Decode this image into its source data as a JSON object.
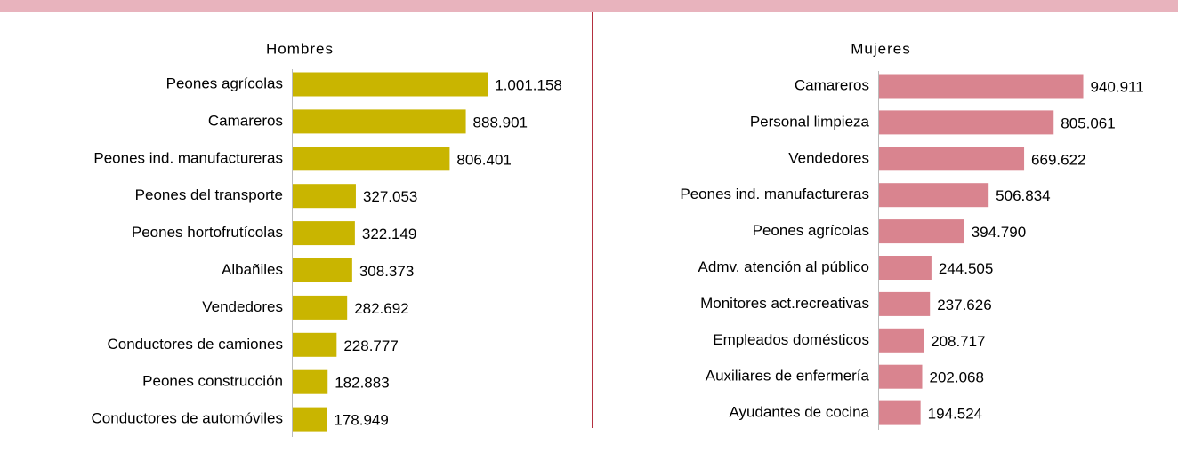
{
  "chart_data": [
    {
      "type": "barh",
      "title": "Hombres",
      "color": "#c9b500",
      "xlim": [
        0,
        1100000
      ],
      "categories": [
        "Peones agrícolas",
        "Camareros",
        "Peones ind. manufactureras",
        "Peones del transporte",
        "Peones hortofrutícolas",
        "Albañiles",
        "Vendedores",
        "Conductores de camiones",
        "Peones construcción",
        "Conductores de automóviles"
      ],
      "values": [
        1001158,
        888901,
        806401,
        327053,
        322149,
        308373,
        282692,
        228777,
        182883,
        178949
      ],
      "value_labels": [
        "1.001.158",
        "888.901",
        "806.401",
        "327.053",
        "322.149",
        "308.373",
        "282.692",
        "228.777",
        "182.883",
        "178.949"
      ]
    },
    {
      "type": "barh",
      "title": "Mujeres",
      "color": "#d9848f",
      "xlim": [
        0,
        1000000
      ],
      "categories": [
        "Camareros",
        "Personal limpieza",
        "Vendedores",
        "Peones ind. manufactureras",
        "Peones agrícolas",
        "Admv. atención al público",
        "Monitores act.recreativas",
        "Empleados domésticos",
        "Auxiliares de enfermería",
        "Ayudantes de cocina"
      ],
      "values": [
        940911,
        805061,
        669622,
        506834,
        394790,
        244505,
        237626,
        208717,
        202068,
        194524
      ],
      "value_labels": [
        "940.911",
        "805.061",
        "669.622",
        "506.834",
        "394.790",
        "244.505",
        "237.626",
        "208.717",
        "202.068",
        "194.524"
      ]
    }
  ]
}
